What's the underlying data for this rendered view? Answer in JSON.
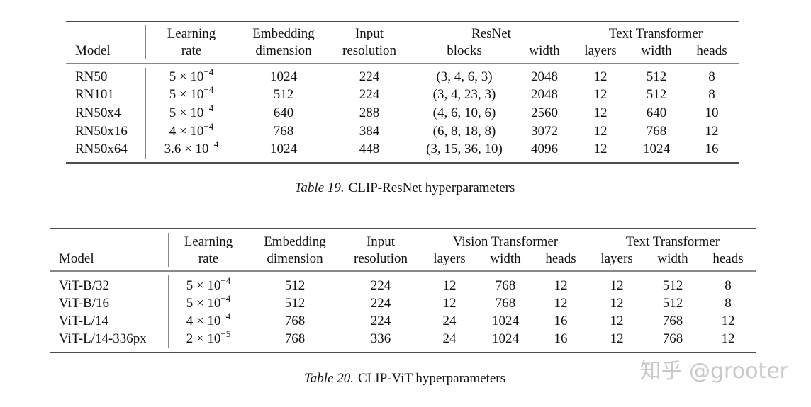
{
  "tables": [
    {
      "groups": [
        "ResNet",
        "Text Transformer"
      ],
      "columns": [
        [
          "Model"
        ],
        [
          "Learning",
          "rate"
        ],
        [
          "Embedding",
          "dimension"
        ],
        [
          "Input",
          "resolution"
        ],
        [
          "blocks"
        ],
        [
          "width"
        ],
        [
          "layers"
        ],
        [
          "width"
        ],
        [
          "heads"
        ]
      ],
      "rows": [
        [
          "RN50",
          {
            "base": "5 × 10",
            "exp": "−4"
          },
          "1024",
          "224",
          "(3, 4, 6, 3)",
          "2048",
          "12",
          "512",
          "8"
        ],
        [
          "RN101",
          {
            "base": "5 × 10",
            "exp": "−4"
          },
          "512",
          "224",
          "(3, 4, 23, 3)",
          "2048",
          "12",
          "512",
          "8"
        ],
        [
          "RN50x4",
          {
            "base": "5 × 10",
            "exp": "−4"
          },
          "640",
          "288",
          "(4, 6, 10, 6)",
          "2560",
          "12",
          "640",
          "10"
        ],
        [
          "RN50x16",
          {
            "base": "4 × 10",
            "exp": "−4"
          },
          "768",
          "384",
          "(6, 8, 18, 8)",
          "3072",
          "12",
          "768",
          "12"
        ],
        [
          "RN50x64",
          {
            "base": "3.6 × 10",
            "exp": "−4"
          },
          "1024",
          "448",
          "(3, 15, 36, 10)",
          "4096",
          "12",
          "1024",
          "16"
        ]
      ],
      "caption": {
        "label": "Table 19.",
        "text": "CLIP-ResNet hyperparameters"
      }
    },
    {
      "groups": [
        "Vision Transformer",
        "Text Transformer"
      ],
      "columns": [
        [
          "Model"
        ],
        [
          "Learning",
          "rate"
        ],
        [
          "Embedding",
          "dimension"
        ],
        [
          "Input",
          "resolution"
        ],
        [
          "layers"
        ],
        [
          "width"
        ],
        [
          "heads"
        ],
        [
          "layers"
        ],
        [
          "width"
        ],
        [
          "heads"
        ]
      ],
      "rows": [
        [
          "ViT-B/32",
          {
            "base": "5 × 10",
            "exp": "−4"
          },
          "512",
          "224",
          "12",
          "768",
          "12",
          "12",
          "512",
          "8"
        ],
        [
          "ViT-B/16",
          {
            "base": "5 × 10",
            "exp": "−4"
          },
          "512",
          "224",
          "12",
          "768",
          "12",
          "12",
          "512",
          "8"
        ],
        [
          "ViT-L/14",
          {
            "base": "4 × 10",
            "exp": "−4"
          },
          "768",
          "224",
          "24",
          "1024",
          "16",
          "12",
          "768",
          "12"
        ],
        [
          "ViT-L/14-336px",
          {
            "base": "2 × 10",
            "exp": "−5"
          },
          "768",
          "336",
          "24",
          "1024",
          "16",
          "12",
          "768",
          "12"
        ]
      ],
      "caption": {
        "label": "Table 20.",
        "text": "CLIP-ViT hyperparameters"
      }
    }
  ],
  "watermark": "知乎 @grooter"
}
